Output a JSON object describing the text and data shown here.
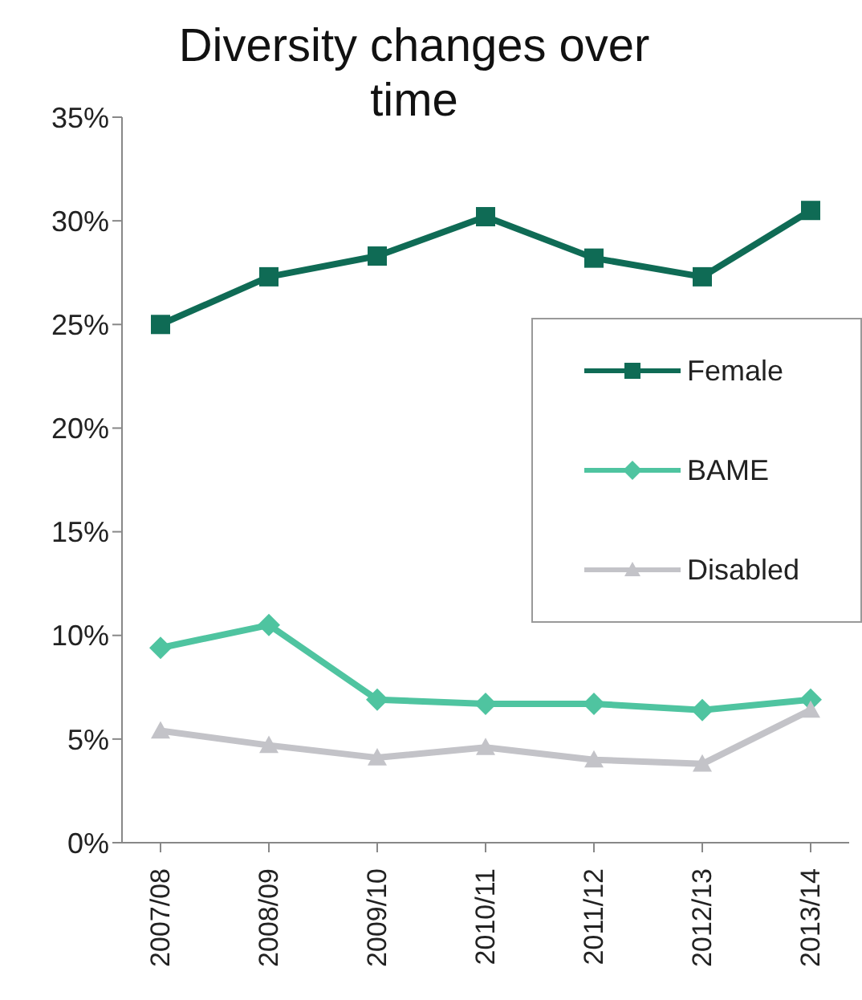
{
  "chart_data": {
    "type": "line",
    "title": "Diversity changes over time",
    "categories": [
      "2007/08",
      "2008/09",
      "2009/10",
      "2010/11",
      "2011/12",
      "2012/13",
      "2013/14"
    ],
    "series": [
      {
        "name": "Female",
        "color": "#0f6b55",
        "marker": "square",
        "values": [
          25.0,
          27.3,
          28.3,
          30.2,
          28.2,
          27.3,
          30.5
        ]
      },
      {
        "name": "BAME",
        "color": "#4fc4a0",
        "marker": "diamond",
        "values": [
          9.4,
          10.5,
          6.9,
          6.7,
          6.7,
          6.4,
          6.9
        ]
      },
      {
        "name": "Disabled",
        "color": "#c3c3c8",
        "marker": "triangle",
        "values": [
          5.4,
          4.7,
          4.1,
          4.6,
          4.0,
          3.8,
          6.4
        ]
      }
    ],
    "ylim": [
      0,
      35
    ],
    "yticks": [
      {
        "value": 0,
        "label": "0%"
      },
      {
        "value": 5,
        "label": "5%"
      },
      {
        "value": 10,
        "label": "10%"
      },
      {
        "value": 15,
        "label": "15%"
      },
      {
        "value": 20,
        "label": "20%"
      },
      {
        "value": 25,
        "label": "25%"
      },
      {
        "value": 30,
        "label": "30%"
      },
      {
        "value": 35,
        "label": "35%"
      }
    ],
    "grid": false,
    "legend": "right"
  }
}
